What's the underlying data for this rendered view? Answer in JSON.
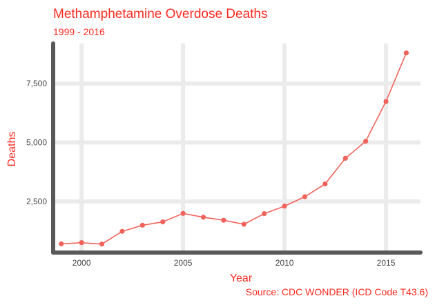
{
  "colors": {
    "accent": "#ff2a1f",
    "series": "#f0625a",
    "grid": "#ebebeb",
    "axis": "#595959"
  },
  "chart_data": {
    "type": "line",
    "title": "Methamphetamine Overdose Deaths",
    "subtitle": "1999 - 2016",
    "xlabel": "Year",
    "ylabel": "Deaths",
    "caption": "Source: CDC WONDER (ICD Code T43.6)",
    "xlim": [
      1998.6,
      2016.7
    ],
    "ylim": [
      330,
      9200
    ],
    "x_ticks": [
      2000,
      2005,
      2010,
      2015
    ],
    "x_tick_labels": [
      "2000",
      "2005",
      "2010",
      "2015"
    ],
    "y_ticks": [
      2500,
      5000,
      7500
    ],
    "y_tick_labels": [
      "2,500",
      "5,000",
      "7,500"
    ],
    "grid": true,
    "legend": "none",
    "x": [
      1999,
      2000,
      2001,
      2002,
      2003,
      2004,
      2005,
      2006,
      2007,
      2008,
      2009,
      2010,
      2011,
      2012,
      2013,
      2014,
      2015,
      2016
    ],
    "series": [
      {
        "values": [
          700,
          750,
          690,
          1230,
          1490,
          1630,
          1990,
          1830,
          1700,
          1530,
          1980,
          2300,
          2700,
          3240,
          4330,
          5050,
          6740,
          8800
        ]
      }
    ]
  }
}
